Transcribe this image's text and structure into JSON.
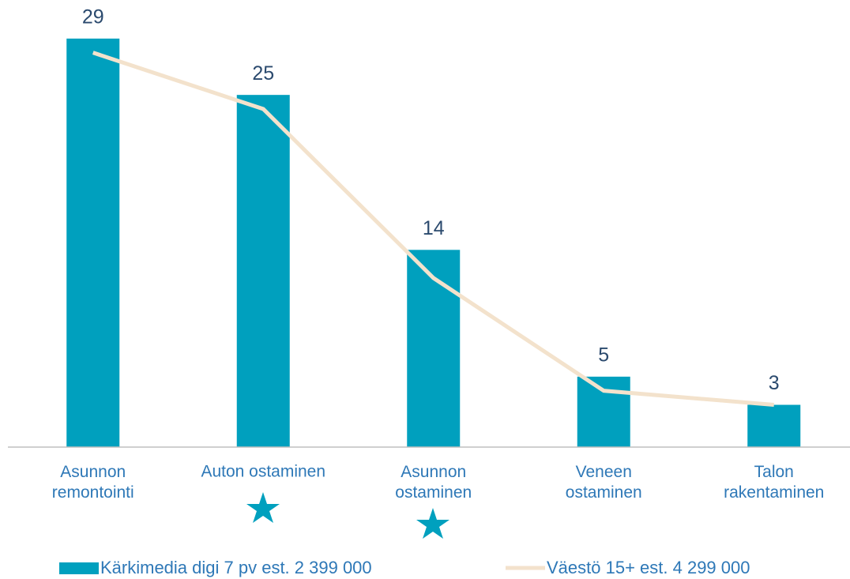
{
  "chart_data": {
    "type": "bar",
    "categories": [
      "Asunnon\nremontointi",
      "Auton ostaminen",
      "Asunnon\nostaminen",
      "Veneen\nostaminen",
      "Talon\nrakentaminen"
    ],
    "series": [
      {
        "name": "Kärkimedia digi 7 pv est. 2 399 000",
        "type": "bar",
        "color": "#00a0be",
        "values": [
          29,
          25,
          14,
          5,
          3
        ]
      },
      {
        "name": "Väestö 15+ est. 4 299 000",
        "type": "line",
        "color": "#f3e2cc",
        "values": [
          28,
          24,
          12,
          4,
          3
        ]
      }
    ],
    "ylim": [
      0,
      30
    ]
  }
}
